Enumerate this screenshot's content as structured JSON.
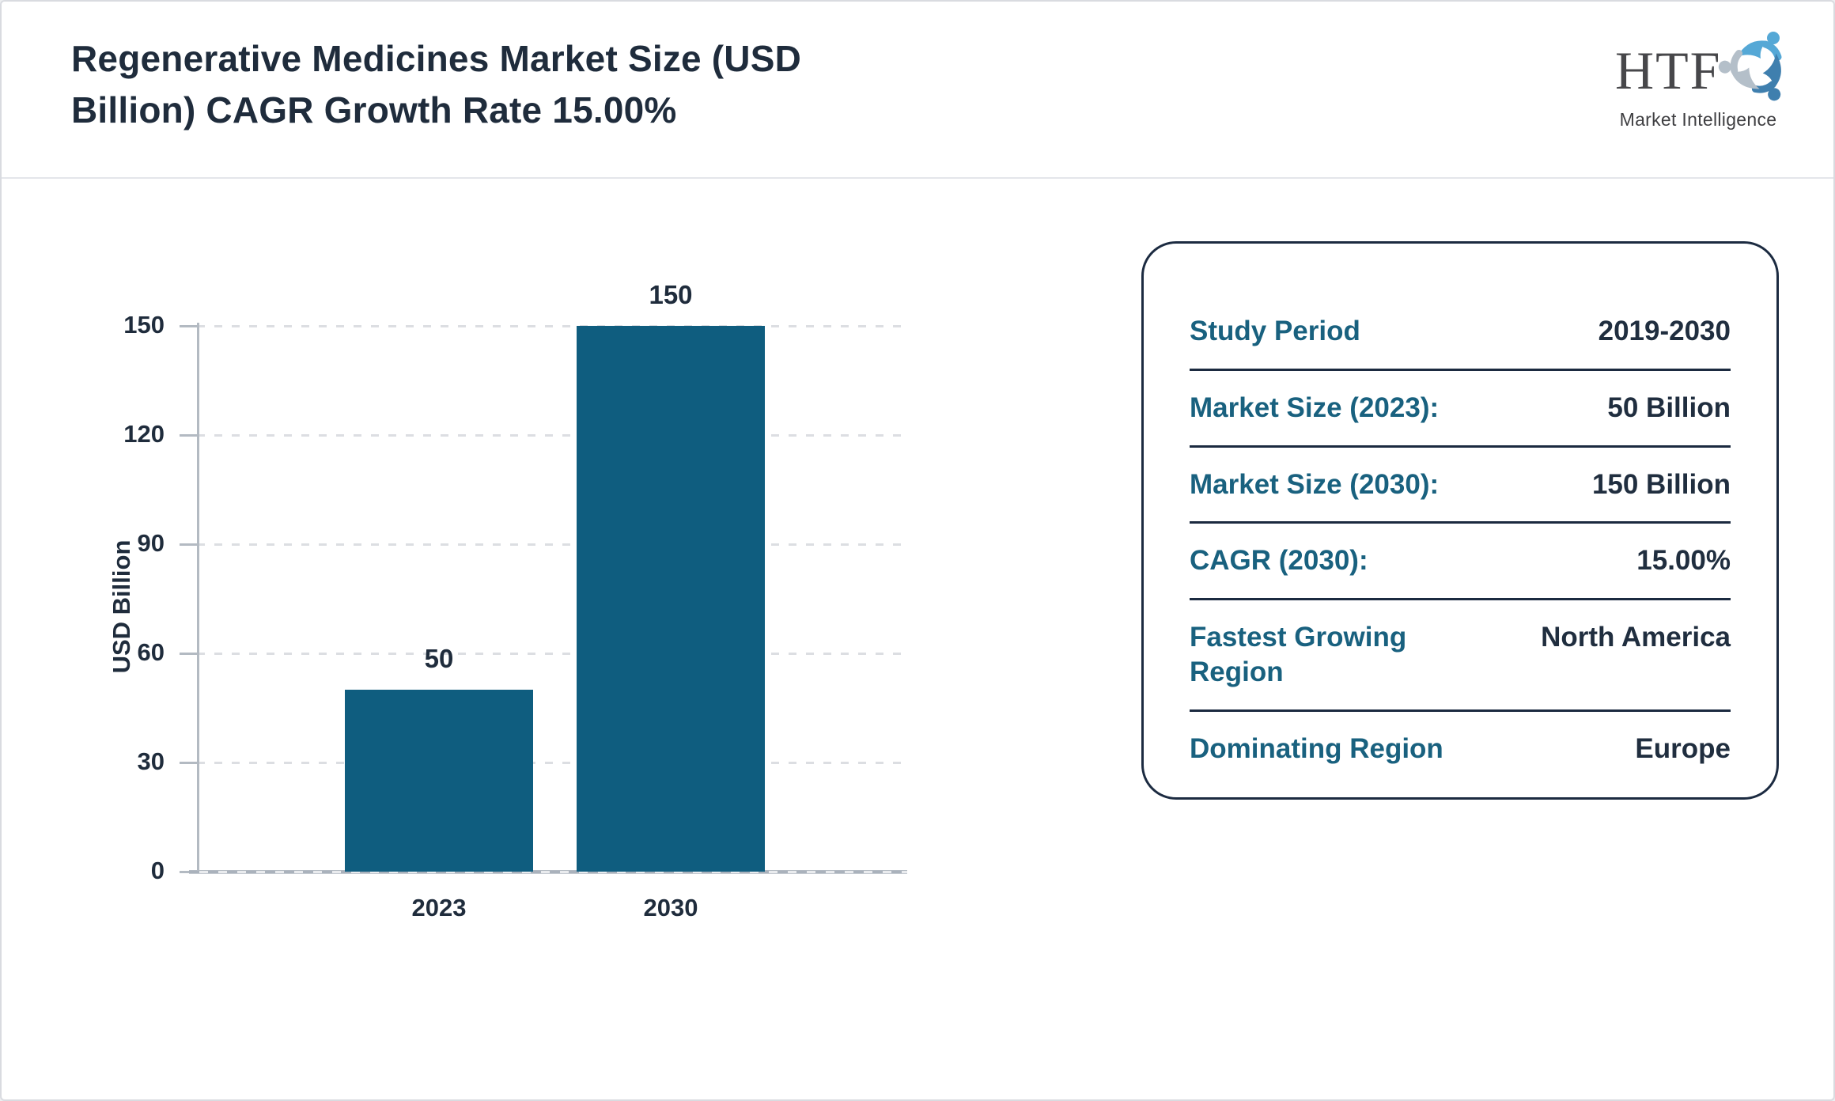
{
  "header": {
    "title_lines": [
      "Regenerative Medicines Market Size (USD",
      "Billion) CAGR Growth Rate 15.00%"
    ],
    "logo": {
      "acronym": "HTF",
      "tagline": "Market Intelligence",
      "icon": "swirl-people-icon",
      "icon_colors": {
        "top_figure": "#55a8d6",
        "bottom_figure": "#3f7fae",
        "left_figure": "#b4bfc9"
      }
    }
  },
  "chart_data": {
    "type": "bar",
    "title": "Regenerative Medicines Market Size (USD Billion) CAGR Growth Rate 15.00%",
    "categories": [
      "2023",
      "2030"
    ],
    "values": [
      50,
      150
    ],
    "bar_labels": [
      "50",
      "150"
    ],
    "xlabel": "",
    "ylabel": "USD Billion",
    "ylim": [
      0,
      150
    ],
    "yticks": [
      0,
      30,
      60,
      90,
      120,
      150
    ],
    "grid": "horizontal-dotted",
    "legend_position": "none",
    "bar_color": "#0f5d7f"
  },
  "info_panel": {
    "rows": [
      {
        "label": "Study Period",
        "value": "2019-2030"
      },
      {
        "label": "Market Size (2023):",
        "value": "50 Billion"
      },
      {
        "label": "Market Size (2030):",
        "value": "150 Billion"
      },
      {
        "label": "CAGR (2030):",
        "value": "15.00%"
      },
      {
        "label": "Fastest Growing Region",
        "value": "North America"
      },
      {
        "label": "Dominating Region",
        "value": "Europe"
      }
    ]
  },
  "colors": {
    "accent_teal": "#19617f",
    "bar_teal": "#0f5d7f",
    "navy_text": "#1f2c3c",
    "axis_gray": "#b3bac2",
    "grid_gray": "#dcdee2",
    "panel_border_navy": "#1c2b41",
    "header_divider_gray": "#e4e6ea"
  }
}
